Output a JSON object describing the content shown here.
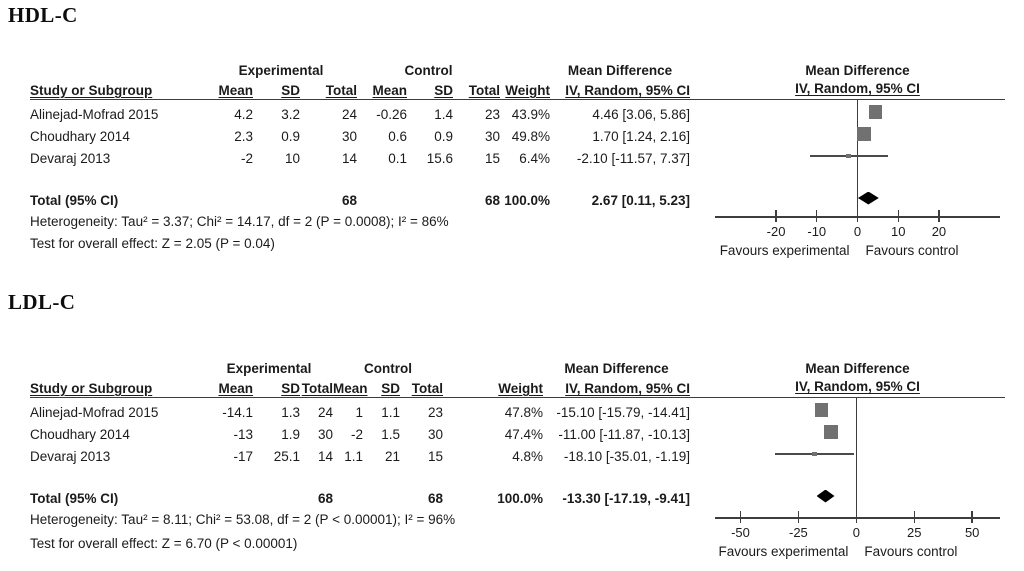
{
  "figure": {
    "background": "#ffffff",
    "text_color": "#1b1b1b",
    "line_color": "#3d3d3d",
    "square_color": "#717171",
    "diamond_color": "#000000"
  },
  "panels": [
    {
      "title": "HDL-C",
      "group_experimental": "Experimental",
      "group_control": "Control",
      "md_header": "Mean Difference",
      "headers": {
        "study": "Study or Subgroup",
        "mean": "Mean",
        "sd": "SD",
        "total": "Total",
        "mean2": "Mean",
        "sd2": "SD",
        "total2": "Total",
        "weight": "Weight",
        "ci": "IV, Random, 95% CI"
      },
      "rows": [
        {
          "study": "Alinejad-Mofrad 2015",
          "exp_mean": "4.2",
          "exp_sd": "3.2",
          "exp_total": "24",
          "ctrl_mean": "-0.26",
          "ctrl_sd": "1.4",
          "ctrl_total": "23",
          "weight": "43.9%",
          "ci": "4.46 [3.06, 5.86]"
        },
        {
          "study": "Choudhary 2014",
          "exp_mean": "2.3",
          "exp_sd": "0.9",
          "exp_total": "30",
          "ctrl_mean": "0.6",
          "ctrl_sd": "0.9",
          "ctrl_total": "30",
          "weight": "49.8%",
          "ci": "1.70 [1.24, 2.16]"
        },
        {
          "study": "Devaraj 2013",
          "exp_mean": "-2",
          "exp_sd": "10",
          "exp_total": "14",
          "ctrl_mean": "0.1",
          "ctrl_sd": "15.6",
          "ctrl_total": "15",
          "weight": "6.4%",
          "ci": "-2.10 [-11.57, 7.37]"
        }
      ],
      "total_row": {
        "label": "Total (95% CI)",
        "exp_total": "68",
        "ctrl_total": "68",
        "weight": "100.0%",
        "ci": "2.67 [0.11, 5.23]"
      },
      "heterogeneity": "Heterogeneity: Tau² = 3.37; Chi² = 14.17, df = 2 (P = 0.0008); I² = 86%",
      "overall_effect": "Test for overall effect: Z = 2.05 (P = 0.04)",
      "plot_header1": "Mean Difference",
      "plot_header2": "IV, Random, 95% CI"
    },
    {
      "title": "LDL-C",
      "group_experimental": "Experimental",
      "group_control": "Control",
      "md_header": "Mean Difference",
      "headers": {
        "study": "Study or Subgroup",
        "mean": "Mean",
        "sd": "SD",
        "total": "Total",
        "mean2": "Mean",
        "sd2": "SD",
        "total2": "Total",
        "weight": "Weight",
        "ci": "IV, Random, 95% CI"
      },
      "rows": [
        {
          "study": "Alinejad-Mofrad 2015",
          "exp_mean": "-14.1",
          "exp_sd": "1.3",
          "exp_total": "24",
          "ctrl_mean": "1",
          "ctrl_sd": "1.1",
          "ctrl_total": "23",
          "weight": "47.8%",
          "ci": "-15.10 [-15.79, -14.41]"
        },
        {
          "study": "Choudhary 2014",
          "exp_mean": "-13",
          "exp_sd": "1.9",
          "exp_total": "30",
          "ctrl_mean": "-2",
          "ctrl_sd": "1.5",
          "ctrl_total": "30",
          "weight": "47.4%",
          "ci": "-11.00 [-11.87, -10.13]"
        },
        {
          "study": "Devaraj 2013",
          "exp_mean": "-17",
          "exp_sd": "25.1",
          "exp_total": "14",
          "ctrl_mean": "1.1",
          "ctrl_sd": "21",
          "ctrl_total": "15",
          "weight": "4.8%",
          "ci": "-18.10 [-35.01, -1.19]"
        }
      ],
      "total_row": {
        "label": "Total (95% CI)",
        "exp_total": "68",
        "ctrl_total": "68",
        "weight": "100.0%",
        "ci": "-13.30 [-17.19, -9.41]"
      },
      "heterogeneity": "Heterogeneity: Tau² = 8.11; Chi² = 53.08, df = 2 (P < 0.00001); I² = 96%",
      "overall_effect": "Test for overall effect: Z = 6.70 (P < 0.00001)",
      "plot_header1": "Mean Difference",
      "plot_header2": "IV, Random, 95% CI"
    }
  ],
  "chart_data": [
    {
      "type": "scatter",
      "subtype": "forest_plot",
      "title": "HDL-C",
      "effect_measure": "Mean Difference",
      "method": "IV, Random, 95% CI",
      "studies": [
        {
          "name": "Alinejad-Mofrad 2015",
          "exp_mean": 4.2,
          "exp_sd": 3.2,
          "exp_total": 24,
          "ctrl_mean": -0.26,
          "ctrl_sd": 1.4,
          "ctrl_total": 23,
          "weight_pct": 43.9,
          "estimate": 4.46,
          "ci_low": 3.06,
          "ci_high": 5.86
        },
        {
          "name": "Choudhary 2014",
          "exp_mean": 2.3,
          "exp_sd": 0.9,
          "exp_total": 30,
          "ctrl_mean": 0.6,
          "ctrl_sd": 0.9,
          "ctrl_total": 30,
          "weight_pct": 49.8,
          "estimate": 1.7,
          "ci_low": 1.24,
          "ci_high": 2.16
        },
        {
          "name": "Devaraj 2013",
          "exp_mean": -2,
          "exp_sd": 10,
          "exp_total": 14,
          "ctrl_mean": 0.1,
          "ctrl_sd": 15.6,
          "ctrl_total": 15,
          "weight_pct": 6.4,
          "estimate": -2.1,
          "ci_low": -11.57,
          "ci_high": 7.37
        }
      ],
      "overall": {
        "estimate": 2.67,
        "ci_low": 0.11,
        "ci_high": 5.23,
        "exp_total": 68,
        "ctrl_total": 68,
        "weight_pct": 100.0
      },
      "heterogeneity": {
        "tau2": 3.37,
        "chi2": 14.17,
        "df": 2,
        "p": "0.0008",
        "i2_pct": 86
      },
      "overall_effect_test": {
        "z": 2.05,
        "p": "0.04"
      },
      "x_ticks": [
        -20,
        -10,
        0,
        10,
        20
      ],
      "axis_range": [
        -35,
        35
      ],
      "xlabel_left": "Favours experimental",
      "xlabel_right": "Favours control"
    },
    {
      "type": "scatter",
      "subtype": "forest_plot",
      "title": "LDL-C",
      "effect_measure": "Mean Difference",
      "method": "IV, Random, 95% CI",
      "studies": [
        {
          "name": "Alinejad-Mofrad 2015",
          "exp_mean": -14.1,
          "exp_sd": 1.3,
          "exp_total": 24,
          "ctrl_mean": 1,
          "ctrl_sd": 1.1,
          "ctrl_total": 23,
          "weight_pct": 47.8,
          "estimate": -15.1,
          "ci_low": -15.79,
          "ci_high": -14.41
        },
        {
          "name": "Choudhary 2014",
          "exp_mean": -13,
          "exp_sd": 1.9,
          "exp_total": 30,
          "ctrl_mean": -2,
          "ctrl_sd": 1.5,
          "ctrl_total": 30,
          "weight_pct": 47.4,
          "estimate": -11.0,
          "ci_low": -11.87,
          "ci_high": -10.13
        },
        {
          "name": "Devaraj 2013",
          "exp_mean": -17,
          "exp_sd": 25.1,
          "exp_total": 14,
          "ctrl_mean": 1.1,
          "ctrl_sd": 21,
          "ctrl_total": 15,
          "weight_pct": 4.8,
          "estimate": -18.1,
          "ci_low": -35.01,
          "ci_high": -1.19
        }
      ],
      "overall": {
        "estimate": -13.3,
        "ci_low": -17.19,
        "ci_high": -9.41,
        "exp_total": 68,
        "ctrl_total": 68,
        "weight_pct": 100.0
      },
      "heterogeneity": {
        "tau2": 8.11,
        "chi2": 53.08,
        "df": 2,
        "p": "< 0.00001",
        "i2_pct": 96
      },
      "overall_effect_test": {
        "z": 6.7,
        "p": "< 0.00001"
      },
      "x_ticks": [
        -50,
        -25,
        0,
        25,
        50
      ],
      "axis_range": [
        -61,
        62
      ],
      "xlabel_left": "Favours experimental",
      "xlabel_right": "Favours control"
    }
  ]
}
